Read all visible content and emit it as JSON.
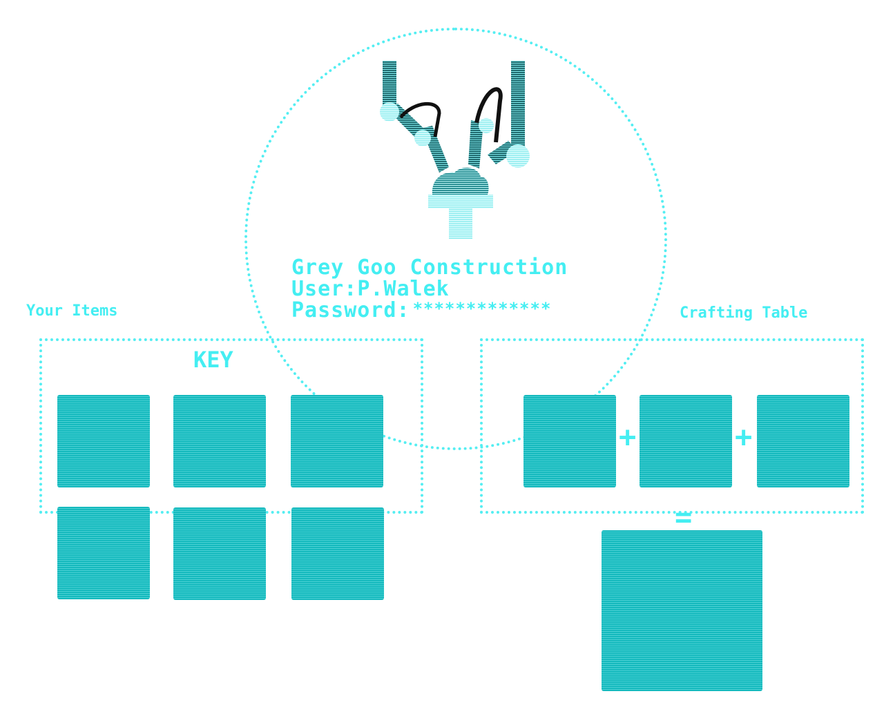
{
  "login": {
    "company": "Grey Goo Construction",
    "user_label": "User:",
    "user_value": "P.Walek",
    "password_label": "Password:",
    "password_mask": "*************"
  },
  "inventory": {
    "label": "Your Items",
    "key_label": "KEY",
    "slots": [
      "",
      "",
      "",
      "",
      "",
      ""
    ]
  },
  "crafting": {
    "label": "Crafting Table",
    "plus": "+",
    "equals": "=",
    "inputs": [
      "",
      "",
      ""
    ],
    "result": ""
  },
  "colors": {
    "accent": "#44eef2",
    "slot_fill": "#14b9bd",
    "logo_dark": "#1d5f63"
  },
  "icons": {
    "logo": "robot-arms-logo-icon"
  }
}
